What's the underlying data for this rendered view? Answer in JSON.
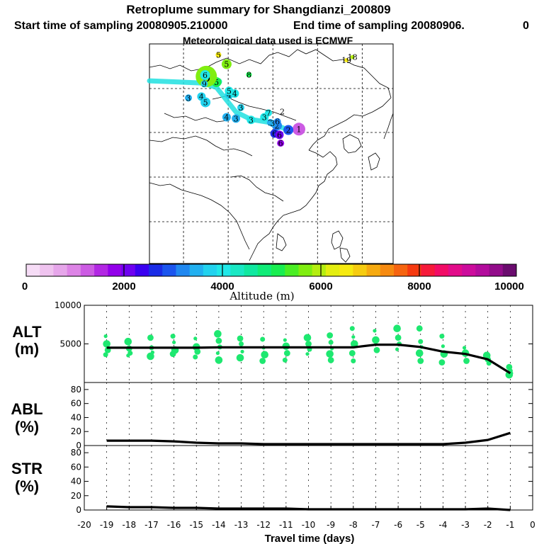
{
  "header": {
    "title": "Retroplume summary for Shangdianzi_200809",
    "start": "Start time of sampling 20080905.210000",
    "end": "End time of sampling 20080906.",
    "end_tail": "0",
    "met": "Meteorological data used is ECMWF"
  },
  "colorbar": {
    "ticks": [
      "0",
      "2000",
      "4000",
      "6000",
      "8000",
      "10000"
    ],
    "label": "Altitude (m)",
    "range": [
      0,
      10000
    ],
    "colors": [
      "#f6dcf6",
      "#efc3ef",
      "#e6a6ea",
      "#dd84e6",
      "#cc5be3",
      "#b227e3",
      "#9300ea",
      "#6e00f0",
      "#3a00f0",
      "#1a2ce6",
      "#1b55ee",
      "#2088f0",
      "#22b0f0",
      "#22d2ee",
      "#20e8e8",
      "#1ae8c4",
      "#10e8a0",
      "#10ec78",
      "#18ee50",
      "#4aee24",
      "#80ee10",
      "#b4ee10",
      "#e4ee10",
      "#f6ea10",
      "#f6cc10",
      "#f6aa10",
      "#f68a10",
      "#f66410",
      "#f63a10",
      "#f61a3a",
      "#f20c66",
      "#e20c8a",
      "#cc0c9c",
      "#b20c9c",
      "#920c8a",
      "#6a0c6e"
    ]
  },
  "map": {
    "markers": [
      {
        "label": "1",
        "lon": 116.8,
        "lat": 40.6,
        "alt": 1200,
        "size": 9
      },
      {
        "label": "2",
        "lon": 114.2,
        "lat": 40.4,
        "alt": 3000,
        "size": 7
      },
      {
        "label": "2",
        "lon": 111.4,
        "lat": 41.4,
        "alt": 3200,
        "size": 7
      },
      {
        "label": "2",
        "lon": 109.8,
        "lat": 42.1,
        "alt": 3500,
        "size": 5
      },
      {
        "label": "2",
        "lon": 112.7,
        "lat": 44.6,
        "alt": 6000,
        "size": 0
      },
      {
        "label": "3",
        "lon": 108.3,
        "lat": 43.3,
        "alt": 3900,
        "size": 6
      },
      {
        "label": "3",
        "lon": 102.5,
        "lat": 45.5,
        "alt": 3700,
        "size": 5
      },
      {
        "label": "3",
        "lon": 110.3,
        "lat": 41.9,
        "alt": 3600,
        "size": 5
      },
      {
        "label": "3",
        "lon": 105.0,
        "lat": 42.7,
        "alt": 4000,
        "size": 6
      },
      {
        "label": "3",
        "lon": 101.3,
        "lat": 43.0,
        "alt": 3600,
        "size": 6
      },
      {
        "label": "3",
        "lon": 89.6,
        "lat": 47.7,
        "alt": 3600,
        "size": 5
      },
      {
        "label": "4",
        "lon": 99.0,
        "lat": 43.3,
        "alt": 3600,
        "size": 6
      },
      {
        "label": "4",
        "lon": 92.8,
        "lat": 48.0,
        "alt": 3700,
        "size": 6
      },
      {
        "label": "4",
        "lon": 99.6,
        "lat": 48.4,
        "alt": 3800,
        "size": 6
      },
      {
        "label": "4",
        "lon": 97.0,
        "lat": 51.4,
        "alt": 4200,
        "size": 5
      },
      {
        "label": "4",
        "lon": 101.0,
        "lat": 48.7,
        "alt": 3900,
        "size": 6
      },
      {
        "label": "5",
        "lon": 96.5,
        "lat": 51.3,
        "alt": 5200,
        "size": 7
      },
      {
        "label": "5",
        "lon": 99.0,
        "lat": 55.4,
        "alt": 5600,
        "size": 7
      },
      {
        "label": "5",
        "lon": 97.0,
        "lat": 57.5,
        "alt": 6600,
        "size": 4
      },
      {
        "label": "5",
        "lon": 93.8,
        "lat": 46.7,
        "alt": 3700,
        "size": 7
      },
      {
        "label": "5",
        "lon": 99.6,
        "lat": 49.3,
        "alt": 3900,
        "size": 6
      },
      {
        "label": "6",
        "lon": 94.0,
        "lat": 52.6,
        "alt": 5800,
        "size": 15
      },
      {
        "label": "6",
        "lon": 93.7,
        "lat": 52.9,
        "alt": 3900,
        "size": 7
      },
      {
        "label": "6",
        "lon": 110.8,
        "lat": 39.6,
        "alt": 2700,
        "size": 6
      },
      {
        "label": "6",
        "lon": 112.0,
        "lat": 39.3,
        "alt": 2000,
        "size": 6
      },
      {
        "label": "6",
        "lon": 112.3,
        "lat": 37.4,
        "alt": 1900,
        "size": 5
      },
      {
        "label": "6",
        "lon": 111.5,
        "lat": 42.3,
        "alt": 3300,
        "size": 5
      },
      {
        "label": "7",
        "lon": 109.3,
        "lat": 44.3,
        "alt": 3900,
        "size": 5
      },
      {
        "label": "8",
        "lon": 104.5,
        "lat": 53.0,
        "alt": 5200,
        "size": 4
      },
      {
        "label": "9",
        "lon": 93.5,
        "lat": 50.9,
        "alt": 3800,
        "size": 5
      },
      {
        "label": "18",
        "lon": 130.0,
        "lat": 57.0,
        "alt": 6000,
        "size": 3
      },
      {
        "label": "19",
        "lon": 128.5,
        "lat": 56.3,
        "alt": 6500,
        "size": 3
      }
    ]
  },
  "panels": {
    "alt_label": [
      "ALT",
      "(m)"
    ],
    "abl_label": [
      "ABL",
      "(%)"
    ],
    "str_label": [
      "STR",
      "(%)"
    ]
  },
  "chart_data": [
    {
      "type": "line",
      "name": "ALT",
      "title": "ALT (m)",
      "xlabel": "Travel time (days)",
      "ylabel": "ALT (m)",
      "xlim": [
        -20,
        0
      ],
      "ylim": [
        0,
        10000
      ],
      "xticks": [
        -20,
        -19,
        -18,
        -17,
        -16,
        -15,
        -14,
        -13,
        -12,
        -11,
        -10,
        -9,
        -8,
        -7,
        -6,
        -5,
        -4,
        -3,
        -2,
        -1,
        0
      ],
      "yticks": [
        5000,
        10000
      ],
      "x": [
        -19,
        -18,
        -17,
        -16,
        -15,
        -14,
        -13,
        -12,
        -11,
        -10,
        -9,
        -8,
        -7,
        -6,
        -5,
        -4,
        -3,
        -2,
        -1
      ],
      "y": [
        4500,
        4500,
        4500,
        4500,
        4500,
        4550,
        4550,
        4550,
        4550,
        4550,
        4550,
        4550,
        4900,
        4900,
        4600,
        4000,
        3700,
        3000,
        1200
      ],
      "scatter": [
        {
          "x": -19,
          "y": [
            6000,
            5000,
            4200,
            3600
          ]
        },
        {
          "x": -18,
          "y": [
            5300,
            4400,
            3800,
            3500
          ]
        },
        {
          "x": -17,
          "y": [
            5800,
            4500,
            3900,
            3400
          ]
        },
        {
          "x": -16,
          "y": [
            6000,
            5200,
            4200,
            3700
          ]
        },
        {
          "x": -15,
          "y": [
            5700,
            4600,
            4000,
            3300
          ]
        },
        {
          "x": -14,
          "y": [
            6300,
            5400,
            4600,
            3800,
            2900
          ]
        },
        {
          "x": -13,
          "y": [
            5700,
            5000,
            4000,
            3200
          ]
        },
        {
          "x": -12,
          "y": [
            5600,
            4500,
            3600,
            2800
          ]
        },
        {
          "x": -11,
          "y": [
            5500,
            4700,
            3800,
            2900
          ]
        },
        {
          "x": -10,
          "y": [
            5800,
            5000,
            4300,
            3700
          ]
        },
        {
          "x": -9,
          "y": [
            6100,
            5200,
            4400,
            3700,
            2900
          ]
        },
        {
          "x": -8,
          "y": [
            7000,
            5900,
            5000,
            3800,
            2800
          ]
        },
        {
          "x": -7,
          "y": [
            6700,
            5500,
            4200
          ]
        },
        {
          "x": -6,
          "y": [
            7000,
            5800,
            5000,
            4300
          ]
        },
        {
          "x": -5,
          "y": [
            7000,
            5300,
            4600,
            3800,
            2800
          ]
        },
        {
          "x": -4,
          "y": [
            6000,
            4700,
            3700,
            2600
          ]
        },
        {
          "x": -3,
          "y": [
            4500,
            3800,
            2800
          ]
        },
        {
          "x": -2,
          "y": [
            3500,
            3000,
            2500
          ]
        },
        {
          "x": -1,
          "y": [
            2000,
            1500,
            1200,
            1000
          ]
        }
      ]
    },
    {
      "type": "line",
      "name": "ABL",
      "title": "ABL (%)",
      "xlabel": "Travel time (days)",
      "ylabel": "ABL (%)",
      "xlim": [
        -20,
        0
      ],
      "ylim": [
        0,
        90
      ],
      "yticks": [
        0,
        20,
        40,
        60,
        80
      ],
      "x": [
        -19,
        -18,
        -17,
        -16,
        -15,
        -14,
        -13,
        -12,
        -11,
        -10,
        -9,
        -8,
        -7,
        -6,
        -5,
        -4,
        -3,
        -2,
        -1
      ],
      "y": [
        7,
        7,
        7,
        6,
        4,
        3,
        3,
        2,
        2,
        2,
        2,
        2,
        2,
        2,
        2,
        2,
        4,
        8,
        18
      ]
    },
    {
      "type": "line",
      "name": "STR",
      "title": "STR (%)",
      "xlabel": "Travel time (days)",
      "ylabel": "STR (%)",
      "xlim": [
        -20,
        0
      ],
      "ylim": [
        0,
        90
      ],
      "yticks": [
        0,
        20,
        40,
        60,
        80
      ],
      "x": [
        -19,
        -18,
        -17,
        -16,
        -15,
        -14,
        -13,
        -12,
        -11,
        -10,
        -9,
        -8,
        -7,
        -6,
        -5,
        -4,
        -3,
        -2,
        -1
      ],
      "y": [
        5,
        4,
        4,
        3,
        3,
        2,
        2,
        2,
        2,
        1,
        1,
        1,
        1,
        1,
        1,
        1,
        1,
        2,
        0
      ]
    }
  ]
}
